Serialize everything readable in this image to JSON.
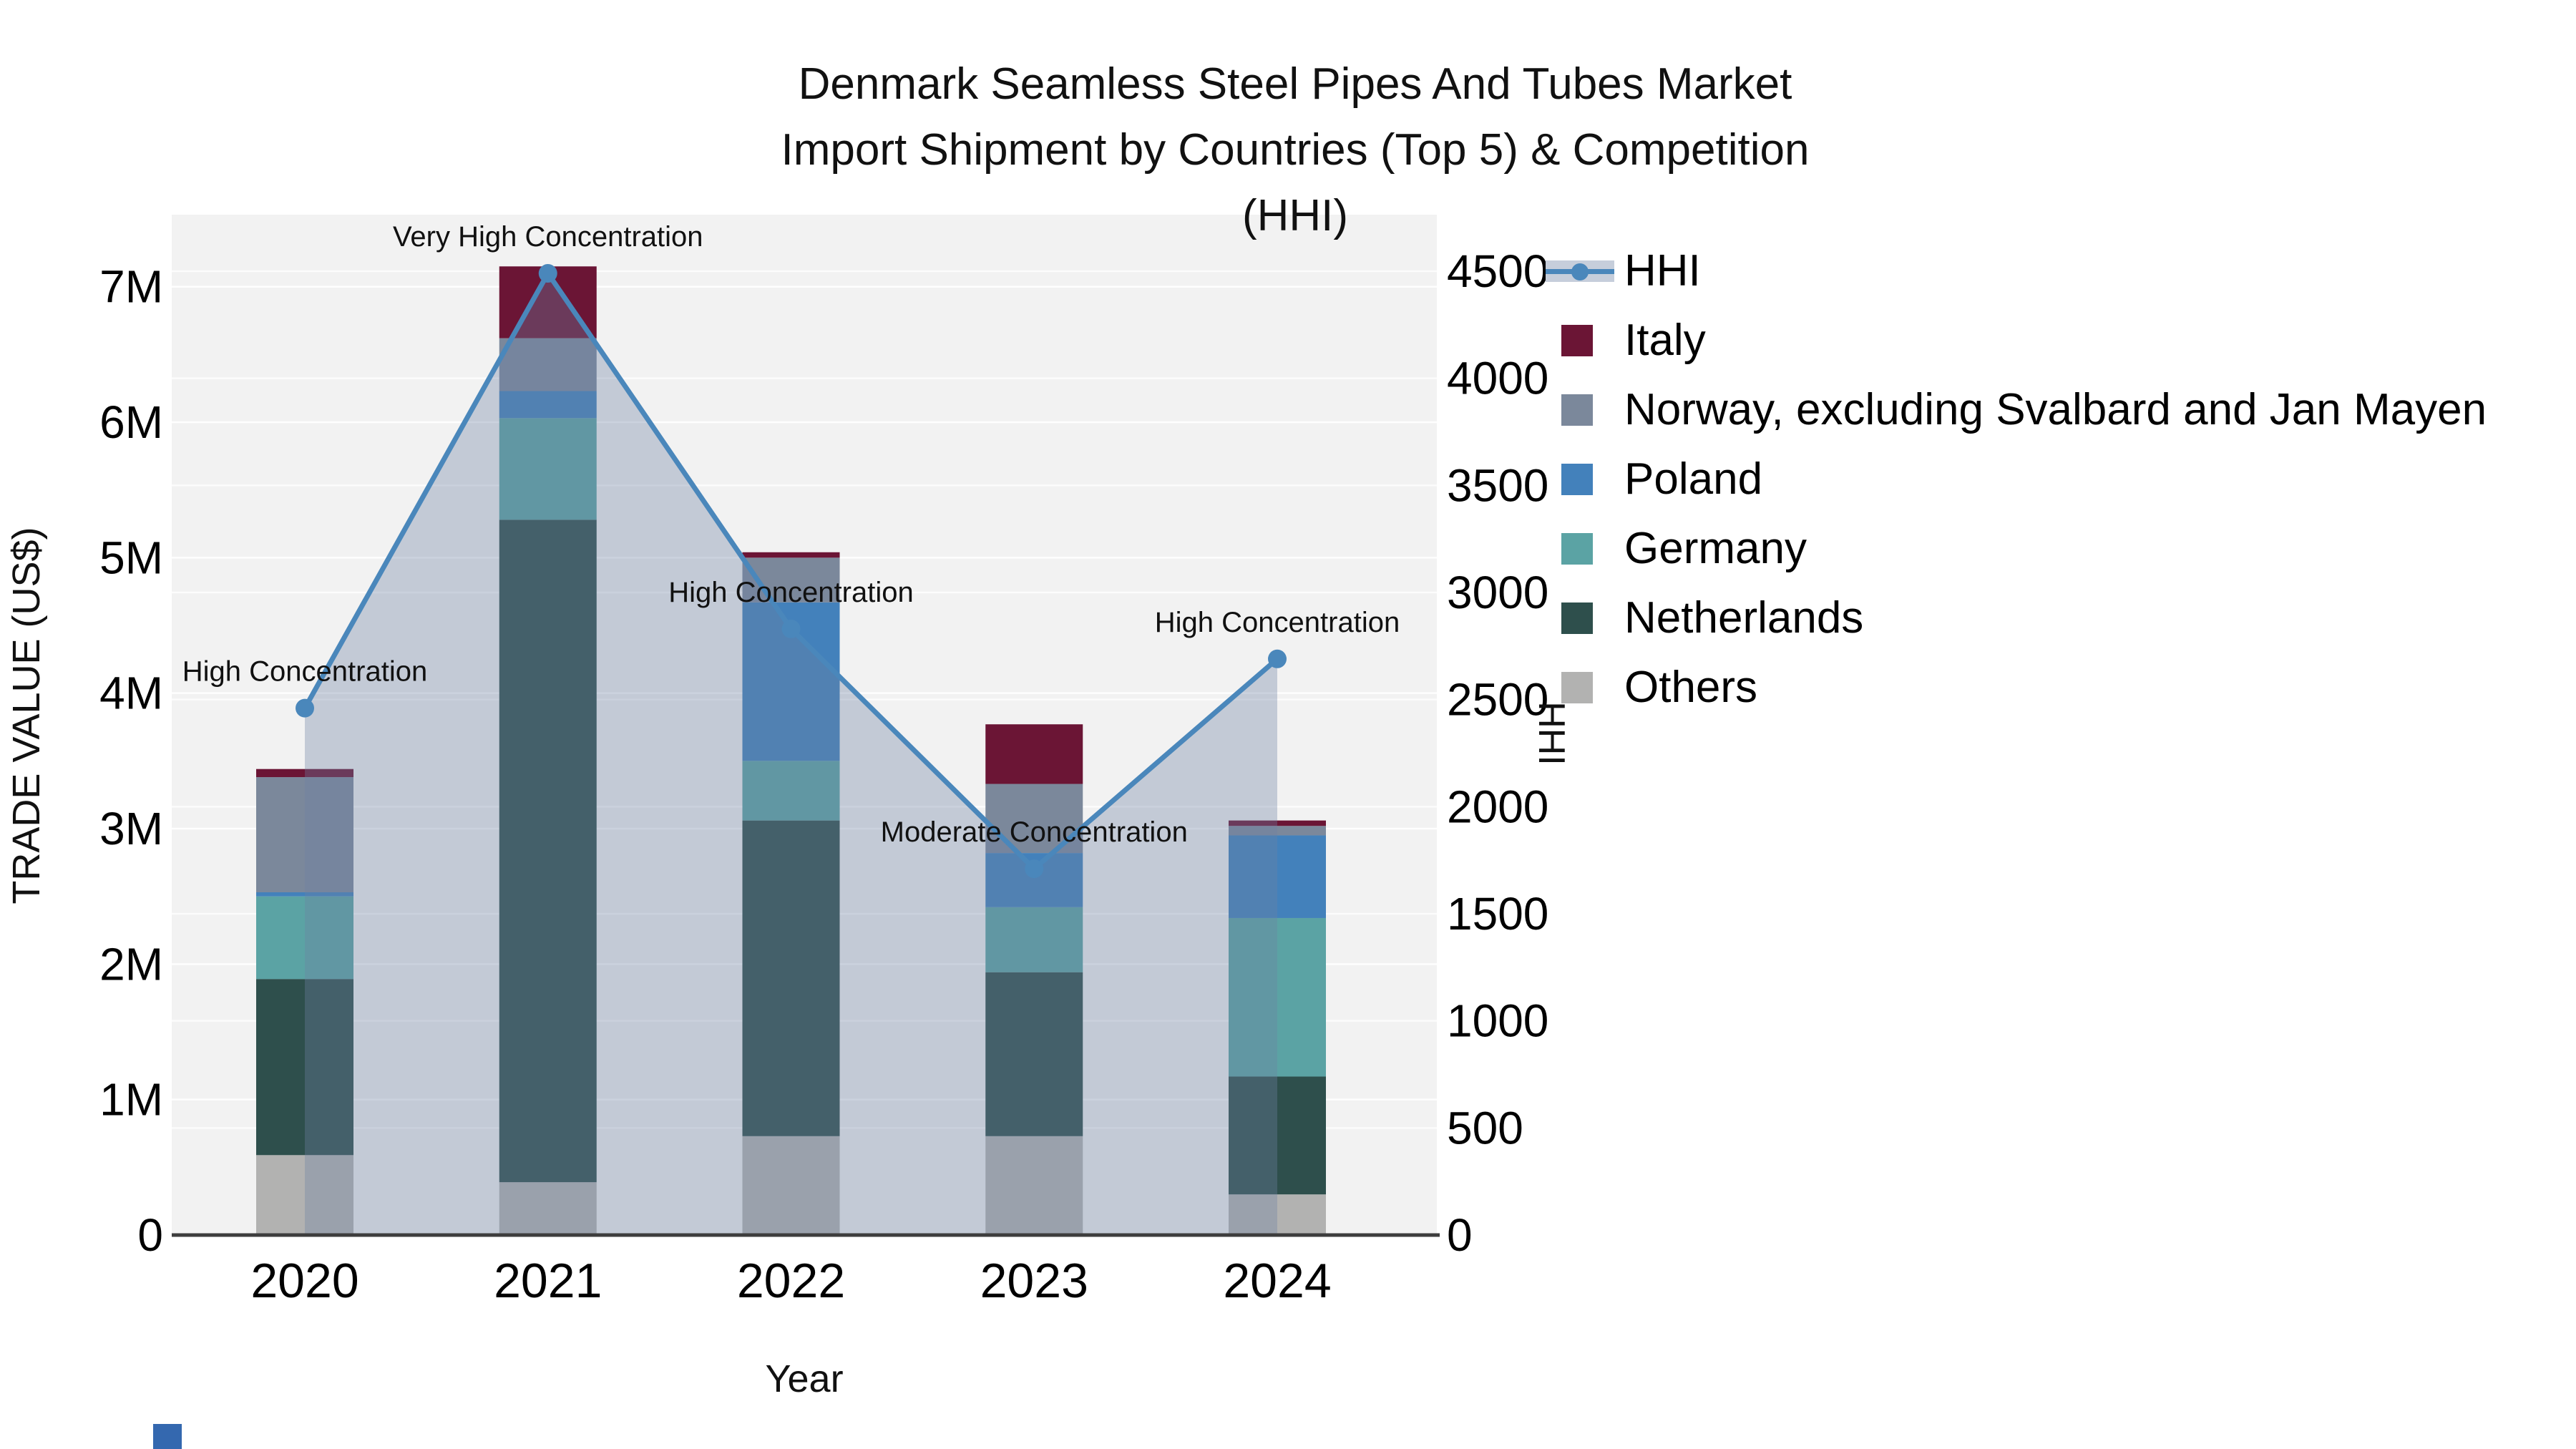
{
  "title": {
    "line1": "Denmark Seamless Steel Pipes And Tubes Market",
    "line2": "Import Shipment by Countries (Top 5) & Competition (HHI)"
  },
  "chart_data": {
    "type": "bar",
    "subtype": "stacked-bars-with-line-overlay",
    "unit": "US$ millions (left axis), HHI index (right axis)",
    "categories": [
      "2020",
      "2021",
      "2022",
      "2023",
      "2024"
    ],
    "series": [
      {
        "name": "Others",
        "color": "#b2b2b1",
        "values": [
          0.59,
          0.39,
          0.73,
          0.73,
          0.3
        ]
      },
      {
        "name": "Netherlands",
        "color": "#2e4f4c",
        "values": [
          1.3,
          4.89,
          2.33,
          1.21,
          0.87
        ]
      },
      {
        "name": "Germany",
        "color": "#5ba3a4",
        "values": [
          0.61,
          0.75,
          0.44,
          0.48,
          1.17
        ]
      },
      {
        "name": "Poland",
        "color": "#4381bb",
        "values": [
          0.03,
          0.2,
          1.17,
          0.4,
          0.61
        ]
      },
      {
        "name": "Norway, excluding Svalbard and Jan Mayen",
        "color": "#7b889b",
        "values": [
          0.85,
          0.39,
          0.33,
          0.51,
          0.07
        ]
      },
      {
        "name": "Italy",
        "color": "#6b1535",
        "values": [
          0.06,
          0.53,
          0.04,
          0.44,
          0.04
        ]
      }
    ],
    "bar_totals_musd": [
      3.44,
      7.15,
      5.04,
      3.77,
      3.06
    ],
    "line_series": {
      "name": "HHI",
      "color": "#4a87bb",
      "fill_color": "rgba(108,130,162,0.35)",
      "values": [
        2460,
        4490,
        2830,
        1710,
        2690
      ]
    },
    "annotations": [
      {
        "category": "2020",
        "text": "High Concentration"
      },
      {
        "category": "2021",
        "text": "Very High Concentration"
      },
      {
        "category": "2022",
        "text": "High Concentration"
      },
      {
        "category": "2023",
        "text": "Moderate Concentration"
      },
      {
        "category": "2024",
        "text": "High Concentration"
      }
    ],
    "y_left": {
      "label": "TRADE VALUE (US$)",
      "ticks": [
        "0",
        "1M",
        "2M",
        "3M",
        "4M",
        "5M",
        "6M",
        "7M"
      ],
      "tick_values_m": [
        0,
        1,
        2,
        3,
        4,
        5,
        6,
        7
      ],
      "ylim": [
        0,
        7.53
      ]
    },
    "y_right": {
      "label": "HHI",
      "ticks": [
        "0",
        "500",
        "1000",
        "1500",
        "2000",
        "2500",
        "3000",
        "3500",
        "4000",
        "4500"
      ],
      "tick_values": [
        0,
        500,
        1000,
        1500,
        2000,
        2500,
        3000,
        3500,
        4000,
        4500
      ],
      "ylim": [
        0,
        4765
      ]
    },
    "x_label": "Year",
    "grid": true,
    "plot_bg": "#f2f2f2",
    "grid_color": "#ffffff",
    "axis_line_color": "#3d3d3d",
    "legend_position": "right",
    "legend": [
      {
        "label": "HHI",
        "type": "line",
        "color": "#4a87bb"
      },
      {
        "label": "Italy",
        "type": "swatch",
        "color": "#6b1535"
      },
      {
        "label": "Norway, excluding Svalbard and Jan Mayen",
        "type": "swatch",
        "color": "#7b889b"
      },
      {
        "label": "Poland",
        "type": "swatch",
        "color": "#4381bb"
      },
      {
        "label": "Germany",
        "type": "swatch",
        "color": "#5ba3a4"
      },
      {
        "label": "Netherlands",
        "type": "swatch",
        "color": "#2e4f4c"
      },
      {
        "label": "Others",
        "type": "swatch",
        "color": "#b2b2b1"
      }
    ]
  }
}
